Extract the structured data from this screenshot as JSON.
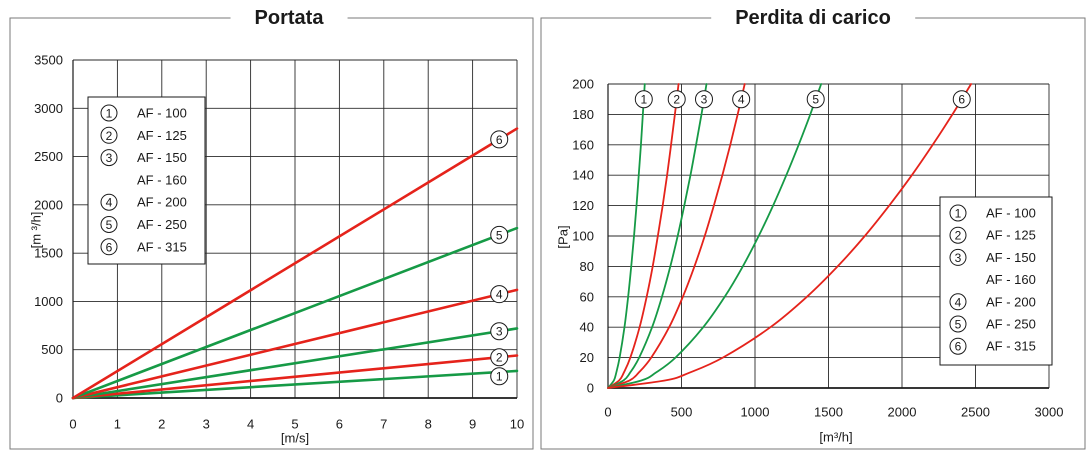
{
  "colors": {
    "red": "#e5231b",
    "green": "#169a46",
    "grid": "#2a2a2a",
    "frame": "#7a7a7a",
    "ink": "#1a1a1a"
  },
  "chart_data": [
    {
      "type": "line",
      "title": "Portata",
      "xlabel": "[m/s]",
      "ylabel": "[m ³/h]",
      "xlim": [
        0,
        10
      ],
      "ylim": [
        0,
        3500
      ],
      "xticks": [
        0,
        1,
        2,
        3,
        4,
        5,
        6,
        7,
        8,
        9,
        10
      ],
      "yticks": [
        0,
        500,
        1000,
        1500,
        2000,
        2500,
        3000,
        3500
      ],
      "grid": true,
      "legend_position": "top-left",
      "legend": [
        {
          "marker": "1",
          "label": "AF - 100"
        },
        {
          "marker": "2",
          "label": "AF - 125"
        },
        {
          "marker": "3",
          "label": "AF - 150"
        },
        {
          "marker": null,
          "label": "AF - 160"
        },
        {
          "marker": "4",
          "label": "AF - 200"
        },
        {
          "marker": "5",
          "label": "AF - 250"
        },
        {
          "marker": "6",
          "label": "AF - 315"
        }
      ],
      "series": [
        {
          "label": "1",
          "color": "#169a46",
          "x": [
            0,
            10
          ],
          "y": [
            0,
            280
          ]
        },
        {
          "label": "2",
          "color": "#e5231b",
          "x": [
            0,
            10
          ],
          "y": [
            0,
            440
          ]
        },
        {
          "label": "3",
          "color": "#169a46",
          "x": [
            0,
            10
          ],
          "y": [
            0,
            720
          ]
        },
        {
          "label": "4",
          "color": "#e5231b",
          "x": [
            0,
            10
          ],
          "y": [
            0,
            1120
          ]
        },
        {
          "label": "5",
          "color": "#169a46",
          "x": [
            0,
            10
          ],
          "y": [
            0,
            1760
          ]
        },
        {
          "label": "6",
          "color": "#e5231b",
          "x": [
            0,
            10
          ],
          "y": [
            0,
            2790
          ]
        }
      ]
    },
    {
      "type": "line",
      "title": "Perdita di carico",
      "xlabel": "[m³/h]",
      "ylabel": "[Pa]",
      "xlim": [
        0,
        3000
      ],
      "ylim": [
        0,
        200
      ],
      "xticks": [
        0,
        500,
        1000,
        1500,
        2000,
        2500,
        3000
      ],
      "yticks": [
        0,
        20,
        40,
        60,
        80,
        100,
        120,
        140,
        160,
        180,
        200
      ],
      "grid": true,
      "legend_position": "middle-right",
      "legend": [
        {
          "marker": "1",
          "label": "AF - 100"
        },
        {
          "marker": "2",
          "label": "AF - 125"
        },
        {
          "marker": "3",
          "label": "AF - 150"
        },
        {
          "marker": null,
          "label": "AF - 160"
        },
        {
          "marker": "4",
          "label": "AF - 200"
        },
        {
          "marker": "5",
          "label": "AF - 250"
        },
        {
          "marker": "6",
          "label": "AF - 315"
        }
      ],
      "series": [
        {
          "label": "1",
          "color": "#169a46",
          "x": [
            0,
            40,
            56,
            79,
            112,
            137,
            158,
            177,
            194,
            209,
            224,
            237,
            250
          ],
          "y": [
            0,
            5,
            10,
            20,
            40,
            60,
            80,
            100,
            120,
            140,
            160,
            180,
            200
          ]
        },
        {
          "label": "2",
          "color": "#e5231b",
          "x": [
            0,
            76,
            107,
            152,
            215,
            263,
            304,
            339,
            372,
            402,
            429,
            455,
            480
          ],
          "y": [
            0,
            5,
            10,
            20,
            40,
            60,
            80,
            100,
            120,
            140,
            160,
            180,
            200
          ]
        },
        {
          "label": "3",
          "color": "#169a46",
          "x": [
            0,
            106,
            150,
            212,
            300,
            367,
            424,
            474,
            519,
            561,
            599,
            636,
            670
          ],
          "y": [
            0,
            5,
            10,
            20,
            40,
            60,
            80,
            100,
            120,
            140,
            160,
            180,
            200
          ]
        },
        {
          "label": "4",
          "color": "#e5231b",
          "x": [
            0,
            147,
            208,
            294,
            416,
            509,
            588,
            658,
            720,
            778,
            832,
            882,
            930
          ],
          "y": [
            0,
            5,
            10,
            20,
            40,
            60,
            80,
            100,
            120,
            140,
            160,
            180,
            200
          ]
        },
        {
          "label": "5",
          "color": "#169a46",
          "x": [
            0,
            229,
            324,
            459,
            648,
            794,
            917,
            1025,
            1123,
            1213,
            1297,
            1376,
            1450
          ],
          "y": [
            0,
            5,
            10,
            20,
            40,
            60,
            80,
            100,
            120,
            140,
            160,
            180,
            200
          ]
        },
        {
          "label": "6",
          "color": "#e5231b",
          "x": [
            0,
            391,
            552,
            781,
            1105,
            1353,
            1562,
            1747,
            1913,
            2067,
            2209,
            2343,
            2470
          ],
          "y": [
            0,
            5,
            10,
            20,
            40,
            60,
            80,
            100,
            120,
            140,
            160,
            180,
            200
          ]
        }
      ]
    }
  ]
}
